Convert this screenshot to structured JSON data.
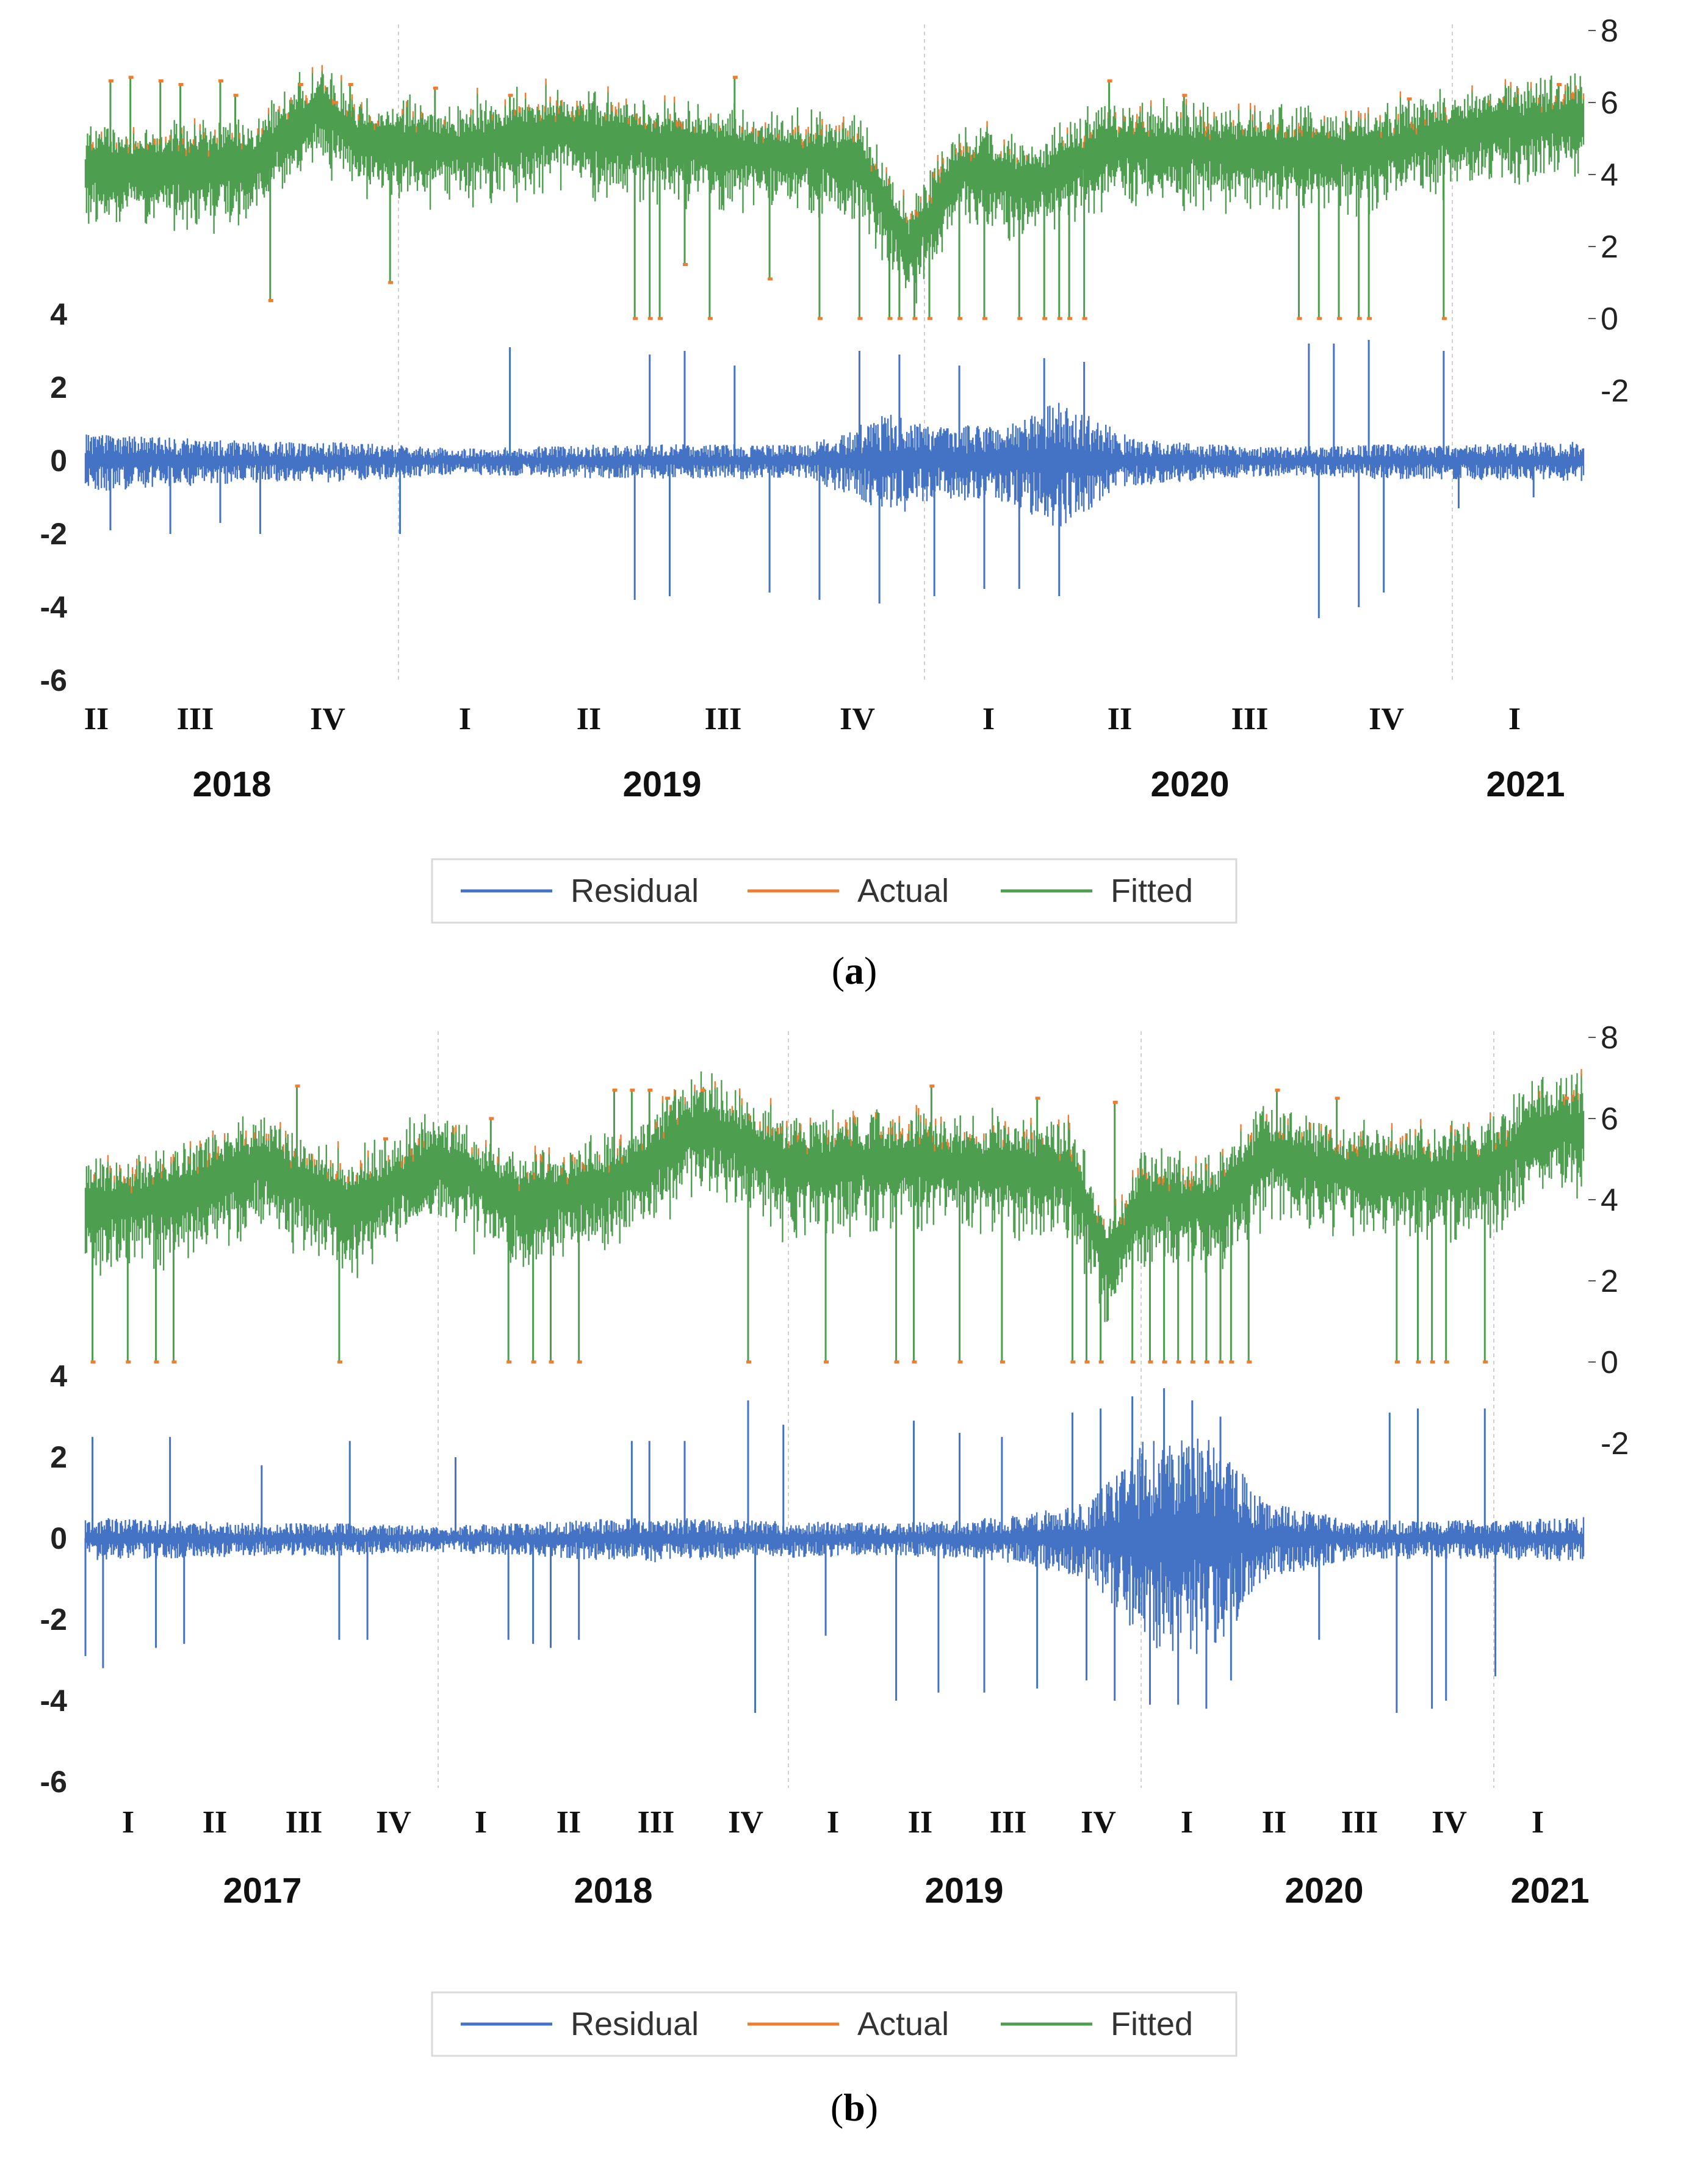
{
  "colors": {
    "residual": "#4472C4",
    "actual": "#ED7D31",
    "fitted": "#4E9E50"
  },
  "legend": {
    "residual": "Residual",
    "actual": "Actual",
    "fitted": "Fitted"
  },
  "chart_data": [
    {
      "panel": "a",
      "caption_letter": "a",
      "type": "line",
      "series": [
        {
          "name": "Residual",
          "axis": "left"
        },
        {
          "name": "Actual",
          "axis": "right"
        },
        {
          "name": "Fitted",
          "axis": "right"
        }
      ],
      "left_axis": {
        "ticks": [
          "4",
          "2",
          "0",
          "-2",
          "-4",
          "-6"
        ],
        "ylim": [
          -6,
          4
        ]
      },
      "right_axis": {
        "ticks": [
          "8",
          "6",
          "4",
          "2",
          "0",
          "-2"
        ],
        "ylim": [
          -2,
          8
        ]
      },
      "quarters": [
        "II",
        "III",
        "IV",
        "I",
        "II",
        "III",
        "IV",
        "I",
        "II",
        "III",
        "IV",
        "I"
      ],
      "years": [
        "2018",
        "2019",
        "2020",
        "2021"
      ],
      "x_range": [
        2018.25,
        2021.25
      ],
      "features": {
        "fitted_level": [
          [
            2018.25,
            4.2
          ],
          [
            2018.5,
            4.3
          ],
          [
            2018.58,
            4.3
          ],
          [
            2018.72,
            5.9
          ],
          [
            2018.8,
            5.0
          ],
          [
            2019.0,
            4.8
          ],
          [
            2019.2,
            5.2
          ],
          [
            2019.5,
            4.7
          ],
          [
            2019.8,
            4.4
          ],
          [
            2019.9,
            2.0
          ],
          [
            2020.0,
            4.2
          ],
          [
            2020.15,
            3.8
          ],
          [
            2020.3,
            4.8
          ],
          [
            2020.5,
            4.7
          ],
          [
            2020.8,
            4.6
          ],
          [
            2021.0,
            5.2
          ],
          [
            2021.25,
            5.6
          ]
        ],
        "residual_amp": [
          [
            2018.25,
            0.5
          ],
          [
            2018.6,
            0.35
          ],
          [
            2018.75,
            0.35
          ],
          [
            2019.0,
            0.22
          ],
          [
            2019.3,
            0.3
          ],
          [
            2019.7,
            0.3
          ],
          [
            2019.87,
            0.9
          ],
          [
            2019.95,
            0.6
          ],
          [
            2020.1,
            0.7
          ],
          [
            2020.2,
            1.1
          ],
          [
            2020.35,
            0.4
          ],
          [
            2020.6,
            0.25
          ],
          [
            2020.85,
            0.3
          ],
          [
            2021.0,
            0.3
          ],
          [
            2021.25,
            0.35
          ]
        ],
        "fitted_spikes": [
          [
            2018.3,
            6.6
          ],
          [
            2018.34,
            6.7
          ],
          [
            2018.4,
            6.6
          ],
          [
            2018.44,
            6.5
          ],
          [
            2018.52,
            6.6
          ],
          [
            2018.55,
            6.2
          ],
          [
            2018.62,
            0.5
          ],
          [
            2018.68,
            6.5
          ],
          [
            2018.75,
            6.0
          ],
          [
            2018.78,
            6.5
          ],
          [
            2018.86,
            1.0
          ],
          [
            2018.95,
            6.4
          ],
          [
            2019.1,
            6.2
          ],
          [
            2019.35,
            0.0
          ],
          [
            2019.38,
            0.0
          ],
          [
            2019.4,
            0.0
          ],
          [
            2019.45,
            1.5
          ],
          [
            2019.5,
            0.0
          ],
          [
            2019.55,
            6.7
          ],
          [
            2019.62,
            1.1
          ],
          [
            2019.72,
            0.0
          ],
          [
            2019.8,
            0.0
          ],
          [
            2019.86,
            0.0
          ],
          [
            2019.88,
            0.0
          ],
          [
            2019.91,
            0.0
          ],
          [
            2019.94,
            0.0
          ],
          [
            2020.0,
            0.0
          ],
          [
            2020.05,
            0.0
          ],
          [
            2020.12,
            0.0
          ],
          [
            2020.17,
            0.0
          ],
          [
            2020.2,
            0.0
          ],
          [
            2020.22,
            0.0
          ],
          [
            2020.25,
            0.0
          ],
          [
            2020.3,
            6.6
          ],
          [
            2020.45,
            6.2
          ],
          [
            2020.68,
            0.0
          ],
          [
            2020.72,
            0.0
          ],
          [
            2020.76,
            0.0
          ],
          [
            2020.8,
            0.0
          ],
          [
            2020.82,
            0.0
          ],
          [
            2020.9,
            6.1
          ],
          [
            2020.97,
            0.0
          ],
          [
            2021.2,
            6.5
          ]
        ],
        "residual_spikes": [
          [
            2018.3,
            -1.9
          ],
          [
            2018.42,
            -2.0
          ],
          [
            2018.52,
            -1.7
          ],
          [
            2018.6,
            -2.0
          ],
          [
            2018.88,
            -2.0
          ],
          [
            2019.1,
            3.1
          ],
          [
            2019.35,
            -3.8
          ],
          [
            2019.38,
            2.9
          ],
          [
            2019.42,
            -3.7
          ],
          [
            2019.45,
            3.0
          ],
          [
            2019.55,
            2.6
          ],
          [
            2019.62,
            -3.6
          ],
          [
            2019.72,
            -3.8
          ],
          [
            2019.8,
            3.0
          ],
          [
            2019.84,
            -3.9
          ],
          [
            2019.88,
            2.9
          ],
          [
            2019.95,
            -3.7
          ],
          [
            2020.0,
            2.6
          ],
          [
            2020.05,
            -3.5
          ],
          [
            2020.12,
            -3.5
          ],
          [
            2020.17,
            2.8
          ],
          [
            2020.2,
            -3.7
          ],
          [
            2020.25,
            2.7
          ],
          [
            2020.7,
            3.2
          ],
          [
            2020.72,
            -4.3
          ],
          [
            2020.75,
            3.2
          ],
          [
            2020.8,
            -4.0
          ],
          [
            2020.82,
            3.3
          ],
          [
            2020.85,
            -3.6
          ],
          [
            2020.97,
            3.0
          ],
          [
            2021.0,
            -1.3
          ],
          [
            2021.15,
            -1.0
          ]
        ]
      }
    },
    {
      "panel": "b",
      "caption_letter": "b",
      "type": "line",
      "series": [
        {
          "name": "Residual",
          "axis": "left"
        },
        {
          "name": "Actual",
          "axis": "right"
        },
        {
          "name": "Fitted",
          "axis": "right"
        }
      ],
      "left_axis": {
        "ticks": [
          "4",
          "2",
          "0",
          "-2",
          "-4",
          "-6"
        ],
        "ylim": [
          -6,
          4
        ]
      },
      "right_axis": {
        "ticks": [
          "8",
          "6",
          "4",
          "2",
          "0",
          "-2"
        ],
        "ylim": [
          -2,
          8
        ]
      },
      "quarters": [
        "I",
        "II",
        "III",
        "IV",
        "I",
        "II",
        "III",
        "IV",
        "I",
        "II",
        "III",
        "IV",
        "I",
        "II",
        "III",
        "IV",
        "I"
      ],
      "years": [
        "2017",
        "2018",
        "2019",
        "2020",
        "2021"
      ],
      "x_range": [
        2017.0,
        2021.25
      ],
      "features": {
        "fitted_level": [
          [
            2017.0,
            3.8
          ],
          [
            2017.25,
            4.1
          ],
          [
            2017.5,
            4.9
          ],
          [
            2017.75,
            3.8
          ],
          [
            2018.0,
            5.0
          ],
          [
            2018.25,
            3.9
          ],
          [
            2018.5,
            4.4
          ],
          [
            2018.75,
            5.9
          ],
          [
            2019.0,
            4.8
          ],
          [
            2019.25,
            5.0
          ],
          [
            2019.5,
            4.9
          ],
          [
            2019.8,
            4.7
          ],
          [
            2019.9,
            2.5
          ],
          [
            2020.0,
            4.0
          ],
          [
            2020.2,
            3.8
          ],
          [
            2020.35,
            5.2
          ],
          [
            2020.5,
            4.8
          ],
          [
            2020.75,
            4.6
          ],
          [
            2021.0,
            4.8
          ],
          [
            2021.1,
            5.7
          ],
          [
            2021.25,
            5.8
          ]
        ],
        "residual_amp": [
          [
            2017.0,
            0.35
          ],
          [
            2017.25,
            0.3
          ],
          [
            2017.5,
            0.25
          ],
          [
            2017.75,
            0.25
          ],
          [
            2018.0,
            0.2
          ],
          [
            2018.3,
            0.28
          ],
          [
            2018.6,
            0.35
          ],
          [
            2018.9,
            0.3
          ],
          [
            2019.3,
            0.25
          ],
          [
            2019.6,
            0.35
          ],
          [
            2019.85,
            0.6
          ],
          [
            2020.0,
            1.6
          ],
          [
            2020.2,
            1.7
          ],
          [
            2020.35,
            0.6
          ],
          [
            2020.6,
            0.3
          ],
          [
            2020.8,
            0.3
          ],
          [
            2021.0,
            0.3
          ],
          [
            2021.25,
            0.35
          ]
        ],
        "fitted_spikes": [
          [
            2017.02,
            0.0
          ],
          [
            2017.12,
            0.0
          ],
          [
            2017.2,
            0.0
          ],
          [
            2017.25,
            0.0
          ],
          [
            2017.6,
            6.8
          ],
          [
            2017.72,
            0.0
          ],
          [
            2017.85,
            5.5
          ],
          [
            2018.15,
            6.0
          ],
          [
            2018.2,
            0.0
          ],
          [
            2018.27,
            0.0
          ],
          [
            2018.32,
            0.0
          ],
          [
            2018.4,
            0.0
          ],
          [
            2018.5,
            6.7
          ],
          [
            2018.55,
            6.7
          ],
          [
            2018.6,
            6.7
          ],
          [
            2018.65,
            6.5
          ],
          [
            2018.75,
            6.7
          ],
          [
            2018.88,
            0.0
          ],
          [
            2019.1,
            0.0
          ],
          [
            2019.3,
            0.0
          ],
          [
            2019.35,
            0.0
          ],
          [
            2019.4,
            6.8
          ],
          [
            2019.48,
            0.0
          ],
          [
            2019.6,
            0.0
          ],
          [
            2019.7,
            6.5
          ],
          [
            2019.8,
            0.0
          ],
          [
            2019.84,
            0.0
          ],
          [
            2019.88,
            0.0
          ],
          [
            2019.92,
            6.4
          ],
          [
            2019.97,
            0.0
          ],
          [
            2020.02,
            0.0
          ],
          [
            2020.06,
            0.0
          ],
          [
            2020.1,
            0.0
          ],
          [
            2020.14,
            0.0
          ],
          [
            2020.18,
            0.0
          ],
          [
            2020.22,
            0.0
          ],
          [
            2020.25,
            0.0
          ],
          [
            2020.3,
            0.0
          ],
          [
            2020.38,
            6.7
          ],
          [
            2020.55,
            6.5
          ],
          [
            2020.72,
            0.0
          ],
          [
            2020.78,
            0.0
          ],
          [
            2020.82,
            0.0
          ],
          [
            2020.86,
            0.0
          ],
          [
            2020.97,
            0.0
          ],
          [
            2021.2,
            6.5
          ]
        ],
        "residual_spikes": [
          [
            2017.0,
            -2.9
          ],
          [
            2017.02,
            2.5
          ],
          [
            2017.05,
            -3.2
          ],
          [
            2017.2,
            -2.7
          ],
          [
            2017.24,
            2.5
          ],
          [
            2017.28,
            -2.6
          ],
          [
            2017.5,
            1.8
          ],
          [
            2017.72,
            -2.5
          ],
          [
            2017.75,
            2.4
          ],
          [
            2017.8,
            -2.5
          ],
          [
            2018.05,
            2.0
          ],
          [
            2018.2,
            -2.5
          ],
          [
            2018.27,
            -2.6
          ],
          [
            2018.32,
            -2.7
          ],
          [
            2018.4,
            -2.5
          ],
          [
            2018.55,
            2.4
          ],
          [
            2018.6,
            2.4
          ],
          [
            2018.7,
            2.4
          ],
          [
            2018.88,
            3.4
          ],
          [
            2018.9,
            -4.3
          ],
          [
            2018.98,
            2.8
          ],
          [
            2019.1,
            -2.4
          ],
          [
            2019.3,
            -4.0
          ],
          [
            2019.35,
            2.9
          ],
          [
            2019.42,
            -3.8
          ],
          [
            2019.48,
            2.6
          ],
          [
            2019.55,
            -3.8
          ],
          [
            2019.6,
            2.5
          ],
          [
            2019.7,
            -3.7
          ],
          [
            2019.8,
            3.1
          ],
          [
            2019.84,
            -3.5
          ],
          [
            2019.88,
            3.2
          ],
          [
            2019.92,
            -4.0
          ],
          [
            2019.97,
            3.5
          ],
          [
            2020.02,
            -4.1
          ],
          [
            2020.06,
            3.7
          ],
          [
            2020.1,
            -4.1
          ],
          [
            2020.14,
            3.4
          ],
          [
            2020.18,
            -4.2
          ],
          [
            2020.22,
            3.0
          ],
          [
            2020.25,
            -3.5
          ],
          [
            2020.5,
            -2.5
          ],
          [
            2020.7,
            3.1
          ],
          [
            2020.72,
            -4.3
          ],
          [
            2020.78,
            3.2
          ],
          [
            2020.82,
            -4.2
          ],
          [
            2020.86,
            -4.0
          ],
          [
            2020.97,
            3.2
          ],
          [
            2021.0,
            -3.4
          ]
        ]
      }
    }
  ]
}
